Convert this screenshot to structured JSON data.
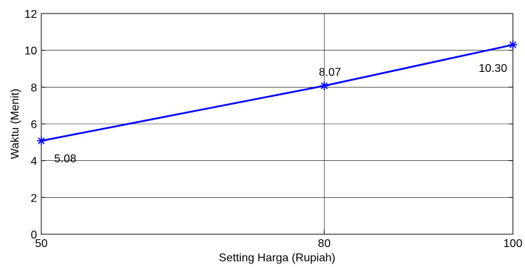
{
  "chart_data": {
    "type": "line",
    "title": "",
    "xlabel": "Setting Harga (Rupiah)",
    "ylabel": "Waktu (Menit)",
    "xlim": [
      50,
      100
    ],
    "ylim": [
      0,
      12
    ],
    "xticks": [
      "50",
      "80",
      "100"
    ],
    "yticks": [
      "0",
      "2",
      "4",
      "6",
      "8",
      "10",
      "12"
    ],
    "grid": true,
    "series": [
      {
        "x": [
          50,
          80,
          100
        ],
        "y": [
          5.08,
          8.07,
          10.3
        ],
        "labels": [
          "5.08",
          "8.07",
          "10.30"
        ],
        "color": "#0000ff",
        "marker": "star"
      }
    ]
  }
}
